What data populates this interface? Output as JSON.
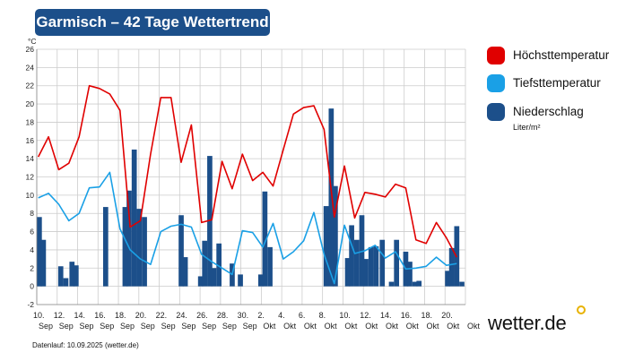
{
  "title": "Garmisch – 42 Tage Wettertrend",
  "legend": {
    "max_label": "Höchsttemperatur",
    "min_label": "Tiefsttemperatur",
    "precip_label": "Niederschlag",
    "precip_unit": "Liter/m²"
  },
  "logo": "wetter.de",
  "footer": "Datenlauf: 10.09.2025 (wetter.de)",
  "colors": {
    "max": "#e00000",
    "min": "#1aa0e6",
    "precip": "#1c4f8a",
    "title_bg": "#1c4f8a",
    "grid": "#cccccc",
    "logo_dot": "#e8b200"
  },
  "chart_data": {
    "type": "bar+line",
    "yunit": "°C",
    "ylim": [
      -2,
      26
    ],
    "yticks": [
      -2,
      0,
      2,
      4,
      6,
      8,
      10,
      12,
      14,
      16,
      18,
      20,
      22,
      24,
      26
    ],
    "grid": true,
    "legend_position": "right",
    "x_start_day": 10,
    "x_days": 42,
    "xtick_labels": [
      {
        "day": 0,
        "top": "10.",
        "bottom": "Sep"
      },
      {
        "day": 2,
        "top": "12.",
        "bottom": "Sep"
      },
      {
        "day": 4,
        "top": "14.",
        "bottom": "Sep"
      },
      {
        "day": 6,
        "top": "16.",
        "bottom": "Sep"
      },
      {
        "day": 8,
        "top": "18.",
        "bottom": "Sep"
      },
      {
        "day": 10,
        "top": "20.",
        "bottom": "Sep"
      },
      {
        "day": 12,
        "top": "22.",
        "bottom": "Sep"
      },
      {
        "day": 14,
        "top": "24.",
        "bottom": "Sep"
      },
      {
        "day": 16,
        "top": "26.",
        "bottom": "Sep"
      },
      {
        "day": 18,
        "top": "28.",
        "bottom": "Sep"
      },
      {
        "day": 20,
        "top": "30.",
        "bottom": "Sep"
      },
      {
        "day": 22,
        "top": "2.",
        "bottom": "Okt"
      },
      {
        "day": 24,
        "top": "4.",
        "bottom": "Okt"
      },
      {
        "day": 26,
        "top": "6.",
        "bottom": "Okt"
      },
      {
        "day": 28,
        "top": "8.",
        "bottom": "Okt"
      },
      {
        "day": 30,
        "top": "10.",
        "bottom": "Okt"
      },
      {
        "day": 32,
        "top": "12.",
        "bottom": "Okt"
      },
      {
        "day": 34,
        "top": "14.",
        "bottom": "Okt"
      },
      {
        "day": 36,
        "top": "16.",
        "bottom": "Okt"
      },
      {
        "day": 38,
        "top": "18.",
        "bottom": "Okt"
      },
      {
        "day": 40,
        "top": "20.",
        "bottom": "Okt"
      },
      {
        "day": 42,
        "top": "",
        "bottom": "Okt"
      }
    ],
    "max_temp": [
      [
        0,
        14.2
      ],
      [
        1,
        16.4
      ],
      [
        2,
        12.8
      ],
      [
        3,
        13.5
      ],
      [
        4,
        16.4
      ],
      [
        5,
        22.0
      ],
      [
        6,
        21.7
      ],
      [
        7,
        21.1
      ],
      [
        8,
        19.3
      ],
      [
        9,
        6.5
      ],
      [
        10,
        7.2
      ],
      [
        11,
        14.5
      ],
      [
        12,
        20.7
      ],
      [
        13,
        20.7
      ],
      [
        14,
        13.6
      ],
      [
        15,
        17.7
      ],
      [
        16,
        7.0
      ],
      [
        17,
        7.3
      ],
      [
        18,
        13.7
      ],
      [
        19,
        10.7
      ],
      [
        20,
        14.5
      ],
      [
        21,
        11.6
      ],
      [
        22,
        12.5
      ],
      [
        23,
        11.0
      ],
      [
        24,
        15.0
      ],
      [
        25,
        18.9
      ],
      [
        26,
        19.6
      ],
      [
        27,
        19.8
      ],
      [
        28,
        17.2
      ],
      [
        29,
        7.6
      ],
      [
        30,
        13.2
      ],
      [
        31,
        7.5
      ],
      [
        32,
        10.3
      ],
      [
        33,
        10.1
      ],
      [
        34,
        9.8
      ],
      [
        35,
        11.2
      ],
      [
        36,
        10.8
      ],
      [
        37,
        5.1
      ],
      [
        38,
        4.7
      ],
      [
        39,
        7.0
      ],
      [
        40,
        5.3
      ],
      [
        41,
        3.2
      ]
    ],
    "min_temp": [
      [
        0,
        9.7
      ],
      [
        1,
        10.2
      ],
      [
        2,
        9.0
      ],
      [
        3,
        7.2
      ],
      [
        4,
        8.0
      ],
      [
        5,
        10.8
      ],
      [
        6,
        10.9
      ],
      [
        7,
        12.5
      ],
      [
        8,
        6.3
      ],
      [
        9,
        4.0
      ],
      [
        10,
        3.0
      ],
      [
        11,
        2.4
      ],
      [
        12,
        6.0
      ],
      [
        13,
        6.6
      ],
      [
        14,
        6.8
      ],
      [
        15,
        6.5
      ],
      [
        16,
        3.5
      ],
      [
        17,
        2.7
      ],
      [
        18,
        2.0
      ],
      [
        19,
        1.3
      ],
      [
        20,
        6.1
      ],
      [
        21,
        5.9
      ],
      [
        22,
        4.3
      ],
      [
        23,
        6.9
      ],
      [
        24,
        3.0
      ],
      [
        25,
        3.8
      ],
      [
        26,
        5.0
      ],
      [
        27,
        8.1
      ],
      [
        28,
        3.5
      ],
      [
        29,
        0.3
      ],
      [
        30,
        6.7
      ],
      [
        31,
        3.6
      ],
      [
        32,
        3.9
      ],
      [
        33,
        4.5
      ],
      [
        34,
        3.1
      ],
      [
        35,
        3.8
      ],
      [
        36,
        1.9
      ],
      [
        37,
        2.0
      ],
      [
        38,
        2.2
      ],
      [
        39,
        3.2
      ],
      [
        40,
        2.3
      ],
      [
        41,
        2.5
      ]
    ],
    "precipitation": [
      [
        0.0,
        7.6
      ],
      [
        0.4,
        5.1
      ],
      [
        2.1,
        2.2
      ],
      [
        2.6,
        0.9
      ],
      [
        3.2,
        2.7
      ],
      [
        3.6,
        2.3
      ],
      [
        6.5,
        8.7
      ],
      [
        8.4,
        8.7
      ],
      [
        8.8,
        10.5
      ],
      [
        9.3,
        15.0
      ],
      [
        9.8,
        8.5
      ],
      [
        10.3,
        7.6
      ],
      [
        13.9,
        7.8
      ],
      [
        14.3,
        3.2
      ],
      [
        15.8,
        1.1
      ],
      [
        16.2,
        5.0
      ],
      [
        16.7,
        14.3
      ],
      [
        17.1,
        2.0
      ],
      [
        17.6,
        4.7
      ],
      [
        18.9,
        2.5
      ],
      [
        19.7,
        1.3
      ],
      [
        21.7,
        1.3
      ],
      [
        22.1,
        10.4
      ],
      [
        22.6,
        4.3
      ],
      [
        28.1,
        8.8
      ],
      [
        28.6,
        19.5
      ],
      [
        29.0,
        11.0
      ],
      [
        30.2,
        3.1
      ],
      [
        30.6,
        6.7
      ],
      [
        31.1,
        5.1
      ],
      [
        31.6,
        7.8
      ],
      [
        32.0,
        3.0
      ],
      [
        32.5,
        4.3
      ],
      [
        33.0,
        4.4
      ],
      [
        33.6,
        5.1
      ],
      [
        34.5,
        0.5
      ],
      [
        35.0,
        5.1
      ],
      [
        35.9,
        3.8
      ],
      [
        36.3,
        2.7
      ],
      [
        36.8,
        0.5
      ],
      [
        37.2,
        0.6
      ],
      [
        40.0,
        1.7
      ],
      [
        40.4,
        4.2
      ],
      [
        40.9,
        6.6
      ],
      [
        41.4,
        0.5
      ]
    ]
  }
}
